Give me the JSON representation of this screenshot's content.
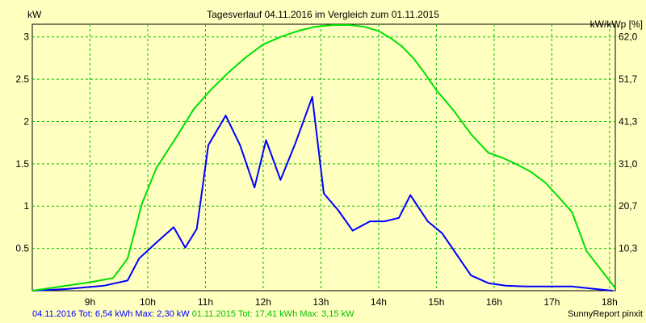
{
  "chart_data": {
    "type": "line",
    "title": "Tagesverlauf 04.11.2016 im Vergleich zum 01.11.2015",
    "ylabel_left": "kW",
    "ylabel_right": "kW/kWp [%]",
    "x_tick_labels": [
      "9h",
      "10h",
      "11h",
      "12h",
      "13h",
      "14h",
      "15h",
      "16h",
      "17h",
      "18h"
    ],
    "y_tick_labels_left": [
      "0.5",
      "1",
      "1.5",
      "2",
      "2.5",
      "3"
    ],
    "y_tick_labels_right": [
      "10,3",
      "20,7",
      "31,0",
      "41,3",
      "51,7",
      "62,0"
    ],
    "ylim": [
      0,
      3.15
    ],
    "xlim": [
      8.0,
      18.1
    ],
    "grid": true,
    "series": [
      {
        "name": "04.11.2016",
        "color": "#0000ff",
        "x": [
          8.0,
          8.6,
          9.25,
          9.65,
          9.85,
          10.2,
          10.45,
          10.65,
          10.85,
          11.05,
          11.35,
          11.6,
          11.85,
          12.05,
          12.3,
          12.55,
          12.85,
          13.05,
          13.3,
          13.55,
          13.85,
          14.1,
          14.35,
          14.55,
          14.85,
          15.1,
          15.35,
          15.6,
          15.9,
          16.2,
          16.55,
          16.85,
          17.1,
          17.35,
          17.75,
          18.05
        ],
        "values": [
          0.0,
          0.02,
          0.06,
          0.12,
          0.38,
          0.6,
          0.75,
          0.51,
          0.73,
          1.72,
          2.07,
          1.72,
          1.22,
          1.78,
          1.31,
          1.73,
          2.29,
          1.15,
          0.95,
          0.71,
          0.82,
          0.82,
          0.86,
          1.13,
          0.82,
          0.68,
          0.43,
          0.18,
          0.09,
          0.06,
          0.05,
          0.05,
          0.05,
          0.05,
          0.02,
          0.0
        ]
      },
      {
        "name": "01.11.2015",
        "color": "#00e000",
        "x": [
          8.0,
          9.0,
          9.4,
          9.65,
          9.9,
          10.15,
          10.5,
          10.8,
          11.1,
          11.4,
          11.7,
          12.0,
          12.3,
          12.6,
          12.9,
          13.2,
          13.5,
          13.75,
          14.0,
          14.2,
          14.4,
          14.6,
          14.8,
          15.0,
          15.3,
          15.6,
          15.9,
          16.15,
          16.4,
          16.65,
          16.9,
          17.1,
          17.35,
          17.6,
          18.1
        ],
        "values": [
          0.0,
          0.1,
          0.15,
          0.38,
          1.03,
          1.45,
          1.82,
          2.15,
          2.38,
          2.58,
          2.76,
          2.91,
          3.0,
          3.07,
          3.12,
          3.14,
          3.14,
          3.12,
          3.07,
          2.99,
          2.89,
          2.75,
          2.57,
          2.37,
          2.13,
          1.85,
          1.63,
          1.57,
          1.49,
          1.4,
          1.27,
          1.12,
          0.93,
          0.47,
          0.03
        ]
      }
    ]
  },
  "footer": {
    "blue_text": "04.11.2016 Tot: 6,54 kWh Max: 2,30 kW",
    "green_text": "01.11.2015 Tot: 17,41 kWh Max: 3,15 kW",
    "credit": "SunnyReport pinxit"
  }
}
